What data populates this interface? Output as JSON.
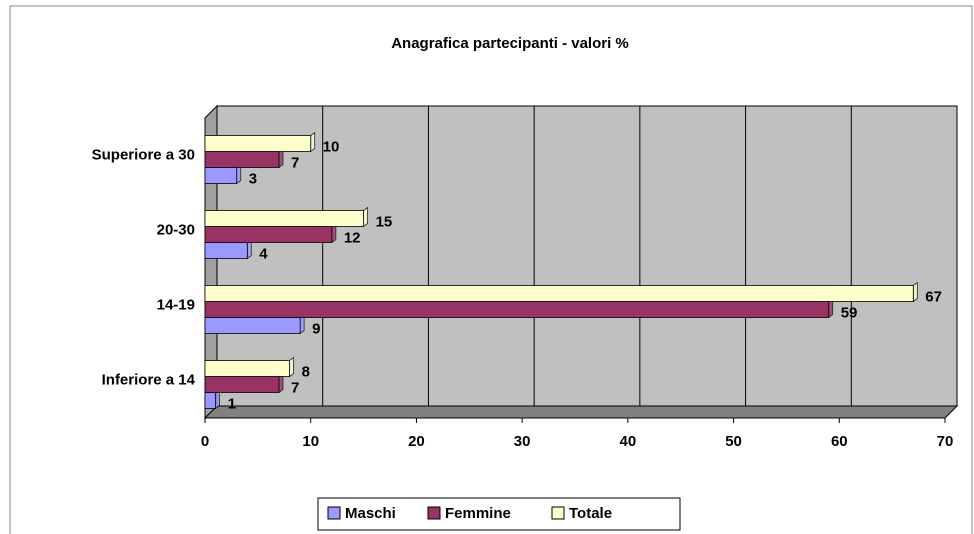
{
  "chart_data": {
    "type": "bar",
    "orientation": "horizontal",
    "title": "Anagrafica partecipanti - valori %",
    "categories": [
      "Inferiore a 14",
      "14-19",
      "20-30",
      "Superiore a 30"
    ],
    "series": [
      {
        "name": "Maschi",
        "color": "#9999ff",
        "values": [
          1,
          9,
          4,
          3
        ]
      },
      {
        "name": "Femmine",
        "color": "#993366",
        "values": [
          7,
          59,
          12,
          7
        ]
      },
      {
        "name": "Totale",
        "color": "#ffffcc",
        "values": [
          8,
          67,
          15,
          10
        ]
      }
    ],
    "xlim": [
      0,
      70
    ],
    "xticks": [
      0,
      10,
      20,
      30,
      40,
      50,
      60,
      70
    ],
    "grid": true,
    "legend": "bottom"
  }
}
